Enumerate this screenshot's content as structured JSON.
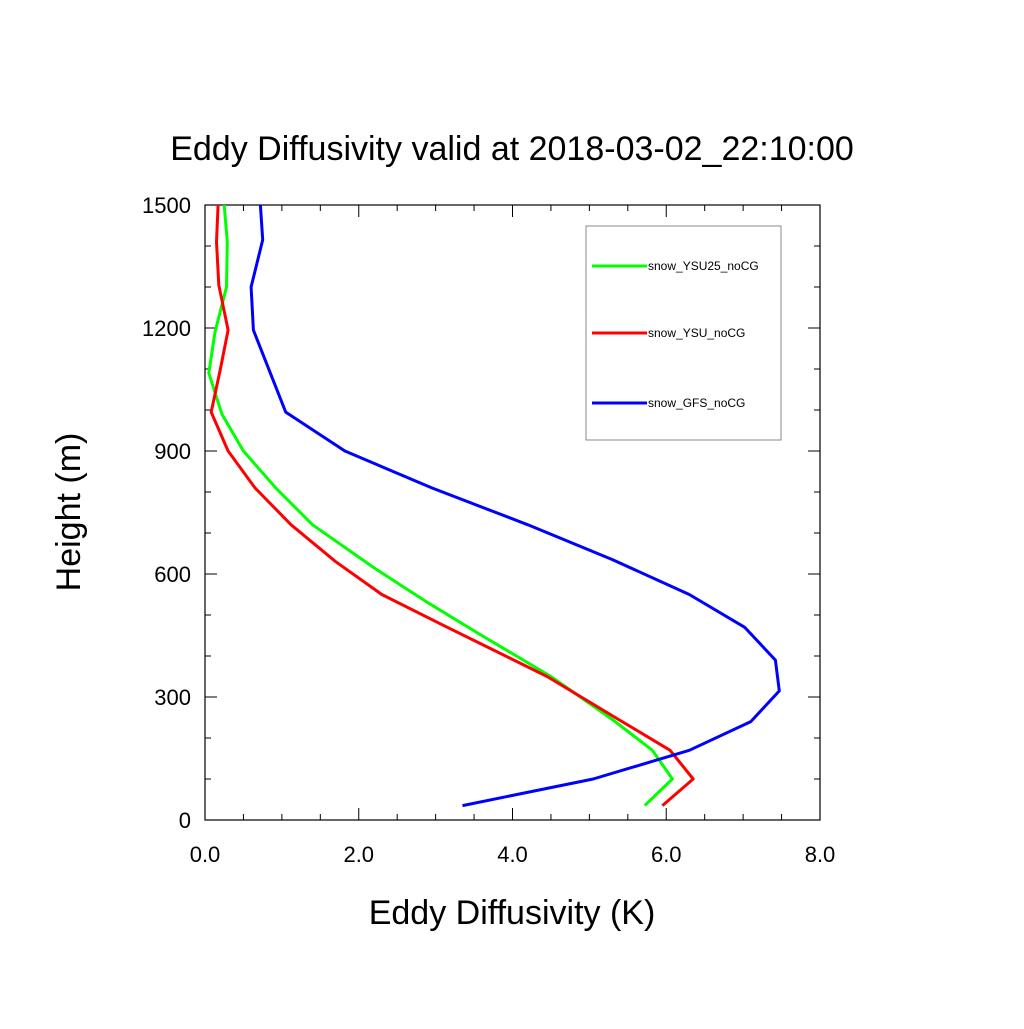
{
  "chart_data": {
    "type": "line",
    "title": "Eddy Diffusivity valid at 2018-03-02_22:10:00",
    "xlabel": "Eddy Diffusivity (K)",
    "ylabel": "Height (m)",
    "xlim": [
      0,
      8
    ],
    "ylim": [
      0,
      1500
    ],
    "x_ticks": [
      "0.0",
      "2.0",
      "4.0",
      "6.0",
      "8.0"
    ],
    "y_ticks": [
      "0",
      "300",
      "600",
      "900",
      "1200",
      "1500"
    ],
    "legend_position": "top-right",
    "grid": false,
    "series": [
      {
        "name": "snow_YSU25_noCG",
        "color": "#00ff00",
        "points": [
          [
            5.72,
            35
          ],
          [
            6.08,
            100
          ],
          [
            5.82,
            170
          ],
          [
            5.3,
            245
          ],
          [
            4.5,
            350
          ],
          [
            3.6,
            450
          ],
          [
            2.9,
            530
          ],
          [
            2.2,
            615
          ],
          [
            1.4,
            720
          ],
          [
            0.92,
            810
          ],
          [
            0.5,
            900
          ],
          [
            0.22,
            990
          ],
          [
            0.05,
            1090
          ],
          [
            0.13,
            1190
          ],
          [
            0.28,
            1300
          ],
          [
            0.29,
            1410
          ],
          [
            0.25,
            1500
          ]
        ]
      },
      {
        "name": "snow_YSU_noCG",
        "color": "#ff0000",
        "points": [
          [
            5.95,
            35
          ],
          [
            6.35,
            100
          ],
          [
            6.05,
            170
          ],
          [
            5.38,
            245
          ],
          [
            4.45,
            350
          ],
          [
            3.1,
            475
          ],
          [
            2.3,
            550
          ],
          [
            1.7,
            630
          ],
          [
            1.12,
            720
          ],
          [
            0.65,
            810
          ],
          [
            0.3,
            900
          ],
          [
            0.08,
            995
          ],
          [
            0.2,
            1100
          ],
          [
            0.3,
            1195
          ],
          [
            0.18,
            1305
          ],
          [
            0.15,
            1410
          ],
          [
            0.17,
            1500
          ]
        ]
      },
      {
        "name": "snow_GFS_noCG",
        "color": "#0000ff",
        "points": [
          [
            3.35,
            35
          ],
          [
            5.05,
            100
          ],
          [
            6.3,
            170
          ],
          [
            7.1,
            240
          ],
          [
            7.47,
            315
          ],
          [
            7.42,
            390
          ],
          [
            7.02,
            470
          ],
          [
            6.3,
            550
          ],
          [
            5.3,
            635
          ],
          [
            4.2,
            720
          ],
          [
            2.95,
            810
          ],
          [
            1.82,
            900
          ],
          [
            1.05,
            995
          ],
          [
            0.63,
            1195
          ],
          [
            0.6,
            1300
          ],
          [
            0.75,
            1415
          ],
          [
            0.72,
            1500
          ]
        ]
      }
    ]
  }
}
